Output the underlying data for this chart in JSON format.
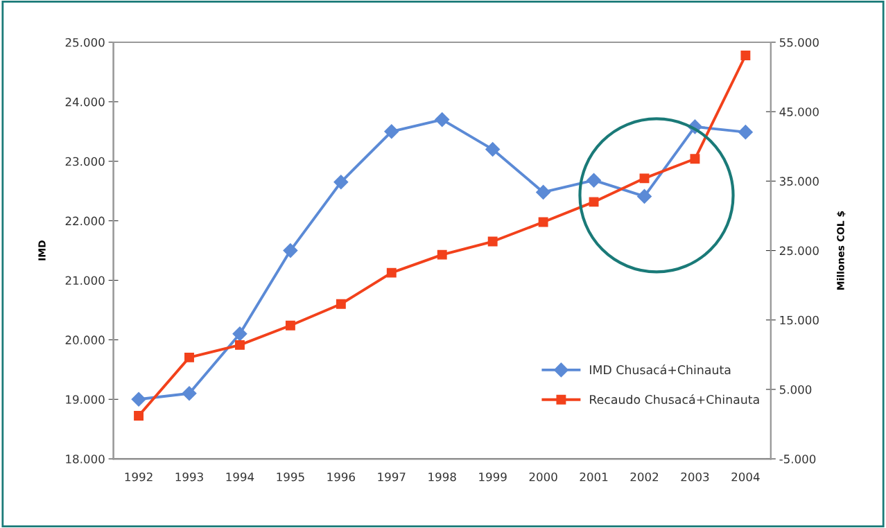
{
  "chart_data": {
    "type": "line",
    "ylabel": "IMD",
    "y2label": "Millones COL $",
    "categories": [
      "1992",
      "1993",
      "1994",
      "1995",
      "1996",
      "1997",
      "1998",
      "1999",
      "2000",
      "2001",
      "2002",
      "2003",
      "2004"
    ],
    "series": [
      {
        "name": "IMD Chusacá+Chinauta",
        "color": "#5b8ad6",
        "marker": "diamond",
        "values": [
          19000,
          19100,
          20100,
          21500,
          22650,
          23500,
          23700,
          23200,
          22480,
          22680,
          22410,
          23580,
          23490
        ]
      },
      {
        "name": "Recaudo Chusacá+Chinauta",
        "color": "#f2411b",
        "marker": "square",
        "axis": "y2",
        "values": [
          1200,
          9600,
          11400,
          14200,
          17300,
          21800,
          24400,
          26300,
          29100,
          32000,
          35400,
          38200,
          53100
        ]
      }
    ],
    "ylim": [
      18000,
      25000
    ],
    "yticks": [
      {
        "value": 18000,
        "label": "18.000"
      },
      {
        "value": 19000,
        "label": "19.000"
      },
      {
        "value": 20000,
        "label": "20.000"
      },
      {
        "value": 21000,
        "label": "21.000"
      },
      {
        "value": 22000,
        "label": "22.000"
      },
      {
        "value": 23000,
        "label": "23.000"
      },
      {
        "value": 24000,
        "label": "24.000"
      },
      {
        "value": 25000,
        "label": "25.000"
      }
    ],
    "y2lim": [
      -5000,
      55000
    ],
    "y2ticks": [
      {
        "value": -5000,
        "label": "-5.000"
      },
      {
        "value": 5000,
        "label": "5.000"
      },
      {
        "value": 15000,
        "label": "15.000"
      },
      {
        "value": 25000,
        "label": "25.000"
      },
      {
        "value": 35000,
        "label": "35.000"
      },
      {
        "value": 45000,
        "label": "45.000"
      },
      {
        "value": 55000,
        "label": "55.000"
      }
    ],
    "grid": false,
    "legend": "bottom right",
    "line_style": "solid"
  }
}
